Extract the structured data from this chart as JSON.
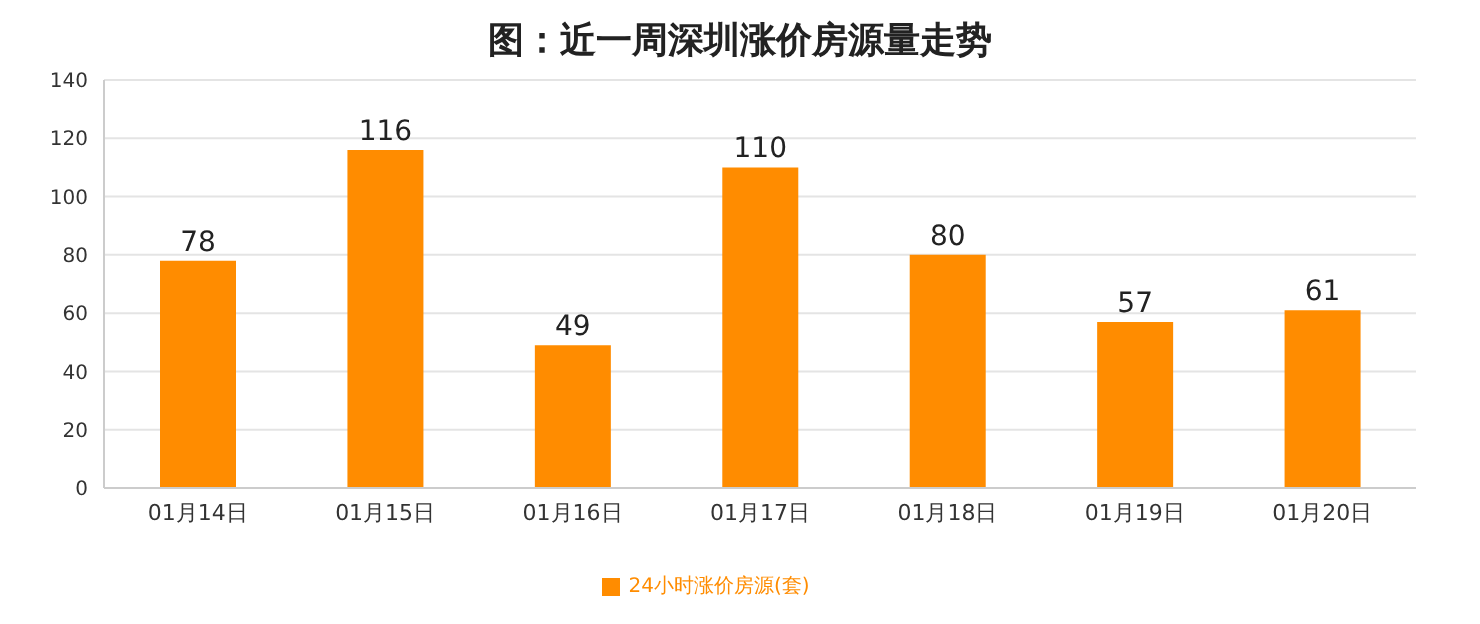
{
  "chart_data": {
    "type": "bar",
    "title": "图：近一周深圳涨价房源量走势",
    "categories": [
      "01月14日",
      "01月15日",
      "01月16日",
      "01月17日",
      "01月18日",
      "01月19日",
      "01月20日"
    ],
    "series": [
      {
        "name": "24小时涨价房源(套)",
        "color": "#ff8c00",
        "values": [
          78,
          116,
          49,
          110,
          80,
          57,
          61
        ]
      }
    ],
    "ylim": [
      0,
      140
    ],
    "yticks": [
      0,
      20,
      40,
      60,
      80,
      100,
      120,
      140
    ],
    "grid": "y",
    "legend": "bottom",
    "data_labels": true
  }
}
